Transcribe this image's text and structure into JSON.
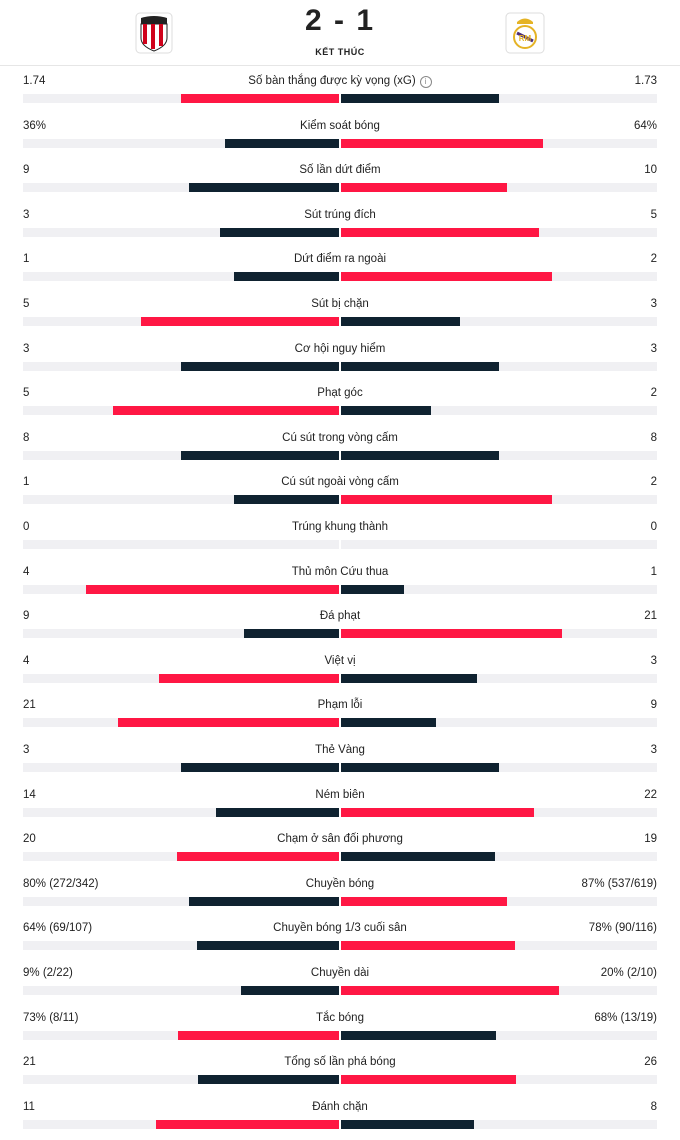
{
  "match": {
    "score": "2 - 1",
    "status": "KẾT THÚC",
    "home_logo_icon": "athletic-club-crest-icon",
    "away_logo_icon": "real-madrid-crest-icon"
  },
  "colors": {
    "accent": "#ff1744",
    "dark": "#0f2230",
    "track": "#f0f0f3"
  },
  "stats": [
    {
      "label": "Số bàn thắng được kỳ vọng (xG)",
      "home": "1.74",
      "away": "1.73",
      "home_frac": 0.5,
      "away_frac": 0.5,
      "highlight": "home",
      "info": true
    },
    {
      "label": "Kiểm soát bóng",
      "home": "36%",
      "away": "64%",
      "home_frac": 0.36,
      "away_frac": 0.64,
      "highlight": "away"
    },
    {
      "label": "Số lần dứt điểm",
      "home": "9",
      "away": "10",
      "home_frac": 0.474,
      "away_frac": 0.526,
      "highlight": "away"
    },
    {
      "label": "Sút trúng đích",
      "home": "3",
      "away": "5",
      "home_frac": 0.375,
      "away_frac": 0.625,
      "highlight": "away"
    },
    {
      "label": "Dứt điểm ra ngoài",
      "home": "1",
      "away": "2",
      "home_frac": 0.333,
      "away_frac": 0.667,
      "highlight": "away"
    },
    {
      "label": "Sút bị chặn",
      "home": "5",
      "away": "3",
      "home_frac": 0.625,
      "away_frac": 0.375,
      "highlight": "home"
    },
    {
      "label": "Cơ hội nguy hiểm",
      "home": "3",
      "away": "3",
      "home_frac": 0.5,
      "away_frac": 0.5,
      "highlight": "none"
    },
    {
      "label": "Phạt góc",
      "home": "5",
      "away": "2",
      "home_frac": 0.714,
      "away_frac": 0.286,
      "highlight": "home"
    },
    {
      "label": "Cú sút trong vòng cấm",
      "home": "8",
      "away": "8",
      "home_frac": 0.5,
      "away_frac": 0.5,
      "highlight": "none"
    },
    {
      "label": "Cú sút ngoài vòng cấm",
      "home": "1",
      "away": "2",
      "home_frac": 0.333,
      "away_frac": 0.667,
      "highlight": "away"
    },
    {
      "label": "Trúng khung thành",
      "home": "0",
      "away": "0",
      "home_frac": 0,
      "away_frac": 0,
      "highlight": "none"
    },
    {
      "label": "Thủ môn Cứu thua",
      "home": "4",
      "away": "1",
      "home_frac": 0.8,
      "away_frac": 0.2,
      "highlight": "home"
    },
    {
      "label": "Đá phạt",
      "home": "9",
      "away": "21",
      "home_frac": 0.3,
      "away_frac": 0.7,
      "highlight": "away"
    },
    {
      "label": "Việt vị",
      "home": "4",
      "away": "3",
      "home_frac": 0.571,
      "away_frac": 0.429,
      "highlight": "home"
    },
    {
      "label": "Phạm lỗi",
      "home": "21",
      "away": "9",
      "home_frac": 0.7,
      "away_frac": 0.3,
      "highlight": "home"
    },
    {
      "label": "Thẻ Vàng",
      "home": "3",
      "away": "3",
      "home_frac": 0.5,
      "away_frac": 0.5,
      "highlight": "none"
    },
    {
      "label": "Ném biên",
      "home": "14",
      "away": "22",
      "home_frac": 0.389,
      "away_frac": 0.611,
      "highlight": "away"
    },
    {
      "label": "Chạm ở sân đối phương",
      "home": "20",
      "away": "19",
      "home_frac": 0.513,
      "away_frac": 0.487,
      "highlight": "home"
    },
    {
      "label": "Chuyền bóng",
      "home": "80% (272/342)",
      "away": "87% (537/619)",
      "home_frac": 0.474,
      "away_frac": 0.526,
      "highlight": "away"
    },
    {
      "label": "Chuyền bóng 1/3 cuối sân",
      "home": "64% (69/107)",
      "away": "78% (90/116)",
      "home_frac": 0.45,
      "away_frac": 0.55,
      "highlight": "away"
    },
    {
      "label": "Chuyền dài",
      "home": "9% (2/22)",
      "away": "20% (2/10)",
      "home_frac": 0.31,
      "away_frac": 0.69,
      "highlight": "away"
    },
    {
      "label": "Tắc bóng",
      "home": "73% (8/11)",
      "away": "68% (13/19)",
      "home_frac": 0.51,
      "away_frac": 0.49,
      "highlight": "home"
    },
    {
      "label": "Tổng số lần phá bóng",
      "home": "21",
      "away": "26",
      "home_frac": 0.447,
      "away_frac": 0.553,
      "highlight": "away"
    },
    {
      "label": "Đánh chặn",
      "home": "11",
      "away": "8",
      "home_frac": 0.579,
      "away_frac": 0.421,
      "highlight": "home"
    }
  ]
}
